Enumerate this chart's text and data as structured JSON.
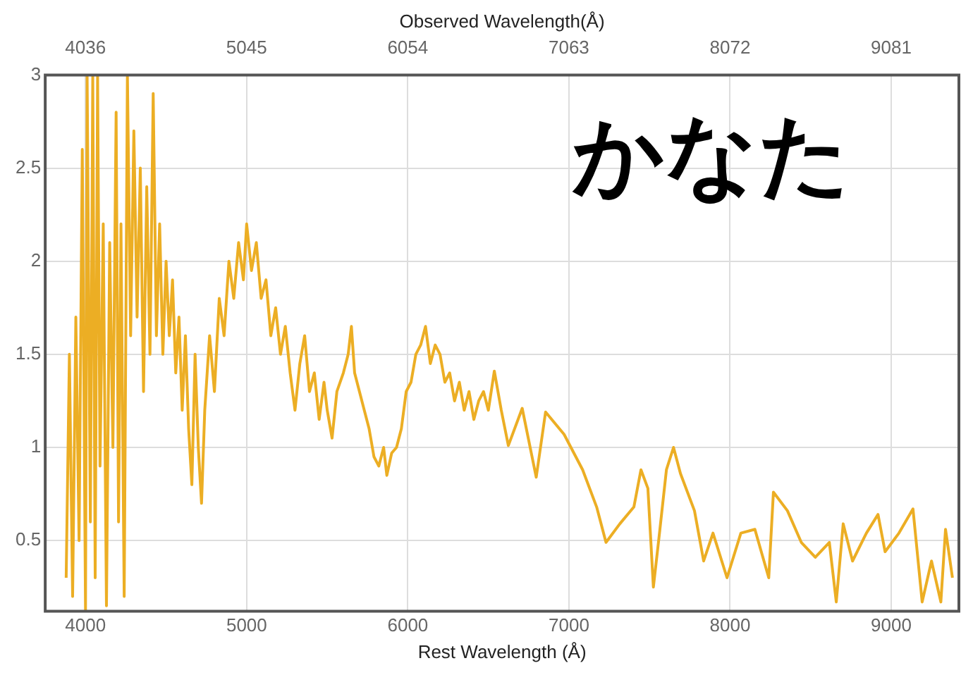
{
  "chart_data": {
    "type": "line",
    "title": "かなた",
    "xlabel": "Rest Wavelength (Å)",
    "x2label": "Observed Wavelength(Å)",
    "xlim": [
      3750,
      9420
    ],
    "xticks": [
      4000,
      5000,
      6000,
      7000,
      8000,
      9000
    ],
    "x2lim": [
      3784,
      9505
    ],
    "x2ticks": [
      4036,
      5045,
      6054,
      7063,
      8072,
      9081
    ],
    "ylim": [
      0.12,
      3.0
    ],
    "yticks": [
      0.5,
      1.0,
      1.5,
      2.0,
      2.5,
      3.0
    ],
    "grid": true,
    "legend": false,
    "marker": "none",
    "line_style": "solid",
    "x": [
      3880,
      3900,
      3920,
      3940,
      3960,
      3980,
      4000,
      4010,
      4030,
      4045,
      4060,
      4075,
      4090,
      4110,
      4130,
      4150,
      4170,
      4190,
      4205,
      4220,
      4240,
      4260,
      4280,
      4300,
      4320,
      4340,
      4360,
      4380,
      4400,
      4420,
      4440,
      4460,
      4480,
      4500,
      4520,
      4540,
      4560,
      4580,
      4600,
      4620,
      4640,
      4660,
      4680,
      4700,
      4720,
      4740,
      4770,
      4800,
      4830,
      4860,
      4890,
      4920,
      4950,
      4980,
      5000,
      5030,
      5060,
      5090,
      5120,
      5150,
      5180,
      5210,
      5240,
      5270,
      5300,
      5330,
      5360,
      5390,
      5420,
      5450,
      5480,
      5500,
      5530,
      5560,
      5600,
      5630,
      5650,
      5670,
      5700,
      5730,
      5760,
      5790,
      5820,
      5850,
      5870,
      5900,
      5930,
      5960,
      5990,
      6020,
      6050,
      6080,
      6110,
      6140,
      6170,
      6200,
      6230,
      6260,
      6290,
      6320,
      6350,
      6380,
      6410,
      6440,
      6470,
      6500,
      6537,
      6580,
      6624,
      6710,
      6797,
      6855,
      6970,
      7085,
      7172,
      7230,
      7316,
      7403,
      7447,
      7490,
      7524,
      7562,
      7605,
      7649,
      7692,
      7779,
      7836,
      7894,
      7981,
      8067,
      8154,
      8240,
      8269,
      8356,
      8442,
      8529,
      8616,
      8659,
      8702,
      8760,
      8846,
      8918,
      8962,
      9048,
      9135,
      9192,
      9250,
      9308,
      9337,
      9380
    ],
    "series": [
      {
        "color": "#ecae24",
        "values": [
          0.3,
          1.5,
          0.2,
          1.7,
          0.5,
          2.6,
          0.12,
          3.0,
          0.6,
          3.0,
          0.3,
          3.0,
          0.9,
          2.2,
          0.15,
          2.1,
          1.0,
          2.8,
          0.6,
          2.2,
          0.2,
          3.0,
          1.6,
          2.7,
          1.7,
          2.5,
          1.3,
          2.4,
          1.5,
          2.9,
          1.6,
          2.2,
          1.5,
          2.0,
          1.6,
          1.9,
          1.4,
          1.7,
          1.2,
          1.6,
          1.1,
          0.8,
          1.5,
          1.0,
          0.7,
          1.2,
          1.6,
          1.3,
          1.8,
          1.6,
          2.0,
          1.8,
          2.1,
          1.9,
          2.2,
          1.95,
          2.1,
          1.8,
          1.9,
          1.6,
          1.75,
          1.5,
          1.65,
          1.4,
          1.2,
          1.45,
          1.6,
          1.3,
          1.4,
          1.15,
          1.35,
          1.2,
          1.05,
          1.3,
          1.4,
          1.5,
          1.65,
          1.4,
          1.3,
          1.2,
          1.1,
          0.95,
          0.9,
          1.0,
          0.85,
          0.97,
          1.0,
          1.1,
          1.3,
          1.35,
          1.5,
          1.55,
          1.65,
          1.45,
          1.55,
          1.5,
          1.35,
          1.4,
          1.25,
          1.35,
          1.2,
          1.3,
          1.15,
          1.25,
          1.3,
          1.2,
          1.41,
          1.2,
          1.01,
          1.21,
          0.84,
          1.19,
          1.07,
          0.88,
          0.68,
          0.49,
          0.59,
          0.68,
          0.88,
          0.78,
          0.25,
          0.54,
          0.88,
          1.0,
          0.86,
          0.66,
          0.39,
          0.54,
          0.3,
          0.54,
          0.56,
          0.3,
          0.76,
          0.66,
          0.49,
          0.41,
          0.49,
          0.17,
          0.59,
          0.39,
          0.54,
          0.64,
          0.44,
          0.54,
          0.67,
          0.17,
          0.39,
          0.17,
          0.56,
          0.3
        ]
      }
    ]
  }
}
